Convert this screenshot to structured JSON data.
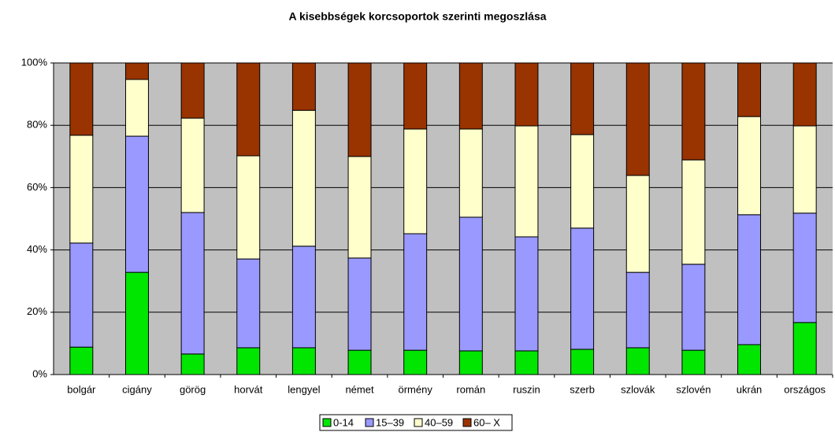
{
  "chart_data": {
    "type": "stacked_bar",
    "title": "A kisebbségek korcsoportok szerinti megoszlása",
    "categories": [
      "bolgár",
      "cigány",
      "görög",
      "horvát",
      "lengyel",
      "német",
      "örmény",
      "román",
      "ruszin",
      "szerb",
      "szlovák",
      "szlovén",
      "ukrán",
      "országos"
    ],
    "series": [
      {
        "name": "0-14",
        "color": "#00e600",
        "values": [
          8.8,
          32.8,
          6.6,
          8.6,
          8.6,
          7.8,
          7.8,
          7.6,
          7.6,
          8.1,
          8.6,
          7.8,
          9.6,
          16.7
        ]
      },
      {
        "name": "15–39",
        "color": "#9999ff",
        "values": [
          33.4,
          43.7,
          45.4,
          28.5,
          32.6,
          29.6,
          37.4,
          42.9,
          36.6,
          38.9,
          24.2,
          27.6,
          41.7,
          35.1
        ]
      },
      {
        "name": "40–59",
        "color": "#ffffcc",
        "values": [
          34.6,
          18.2,
          30.3,
          33.1,
          43.6,
          32.6,
          33.6,
          28.3,
          35.6,
          30.0,
          31.1,
          33.5,
          31.5,
          28.0
        ]
      },
      {
        "name": "60– X",
        "color": "#993300",
        "values": [
          23.2,
          5.3,
          17.7,
          29.8,
          15.2,
          30.0,
          21.2,
          21.2,
          20.2,
          23.0,
          36.1,
          31.1,
          17.2,
          20.2
        ]
      }
    ],
    "ylim": [
      0,
      100
    ],
    "yticks": [
      {
        "value": 0,
        "label": "0%"
      },
      {
        "value": 20,
        "label": "20%"
      },
      {
        "value": 40,
        "label": "40%"
      },
      {
        "value": 60,
        "label": "60%"
      },
      {
        "value": 80,
        "label": "80%"
      },
      {
        "value": 100,
        "label": "100%"
      }
    ],
    "grid": true,
    "legend": "bottom"
  }
}
